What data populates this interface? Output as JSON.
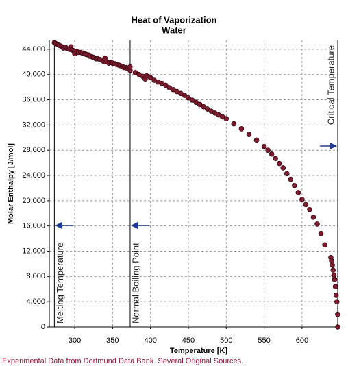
{
  "chart_data": {
    "type": "scatter",
    "title": "Heat of Vaporization",
    "subtitle": "Water",
    "x_label": "Temperature [K]",
    "y_label": "Molar Enthalpy [J/mol]",
    "footer": "Experimental Data from Dortmund Data Bank. Several Original Sources.",
    "color": "#7a1b2e",
    "grid": true,
    "xlim": [
      266.5,
      647.1
    ],
    "ylim": [
      0,
      45400
    ],
    "xticks": [
      300,
      350,
      400,
      450,
      500,
      550,
      600
    ],
    "yticks": [
      0,
      {
        "value": 4000,
        "label": "4,000"
      },
      {
        "value": 8000,
        "label": "8,000"
      },
      {
        "value": 12000,
        "label": "12,000"
      },
      {
        "value": 16000,
        "label": "16,000"
      },
      {
        "value": 20000,
        "label": "20,000"
      },
      {
        "value": 24000,
        "label": "24,000"
      },
      {
        "value": 28000,
        "label": "28,000"
      },
      {
        "value": 32000,
        "label": "32,000"
      },
      {
        "value": 36000,
        "label": "36,000"
      },
      {
        "value": 40000,
        "label": "40,000"
      },
      {
        "value": 44000,
        "label": "44,000"
      }
    ],
    "reference_lines": [
      {
        "value": 273.15,
        "label": "Melting Temperature"
      },
      {
        "value": 373.15,
        "label": "Normal Boiling Point"
      },
      {
        "value": 647.1,
        "label": "Critical Temperature"
      }
    ],
    "x": [
      273.15,
      275,
      278,
      280,
      283,
      285,
      288,
      290,
      293,
      295,
      296,
      298,
      300,
      300,
      303,
      305,
      308,
      310,
      313,
      315,
      318,
      320,
      323,
      325,
      328,
      330,
      333,
      335,
      338,
      340,
      340,
      343,
      345,
      348,
      350,
      353,
      355,
      358,
      360,
      363,
      365,
      368,
      370,
      373.15,
      373,
      380,
      385,
      390,
      393,
      395,
      400,
      405,
      410,
      415,
      420,
      425,
      430,
      435,
      440,
      445,
      450,
      455,
      460,
      465,
      470,
      475,
      480,
      485,
      490,
      495,
      500,
      510,
      520,
      530,
      540,
      550,
      555,
      560,
      565,
      570,
      575,
      580,
      585,
      590,
      595,
      600,
      605,
      610,
      615,
      620,
      625,
      630,
      638,
      639,
      640,
      641,
      642,
      643,
      644,
      645,
      646,
      647,
      647.1
    ],
    "values": [
      45050,
      44900,
      44700,
      44600,
      44400,
      44200,
      44300,
      44100,
      44000,
      44400,
      43900,
      43800,
      43700,
      43300,
      43600,
      43500,
      43500,
      43400,
      43300,
      43200,
      43100,
      42900,
      42800,
      42700,
      42500,
      42500,
      42400,
      42300,
      42100,
      42000,
      42600,
      42000,
      41800,
      41900,
      41800,
      41700,
      41600,
      41500,
      41400,
      41300,
      41100,
      41100,
      40900,
      40660,
      41200,
      40300,
      40000,
      39700,
      39300,
      39800,
      39500,
      39100,
      38800,
      38600,
      38300,
      37900,
      37600,
      37300,
      37000,
      36700,
      36300,
      35950,
      35600,
      35250,
      34900,
      34550,
      34200,
      33900,
      33600,
      33300,
      33000,
      32200,
      31400,
      30500,
      29600,
      28600,
      28000,
      27400,
      26700,
      25900,
      25200,
      24300,
      23400,
      22400,
      21300,
      20200,
      19400,
      18600,
      17400,
      16300,
      14800,
      13000,
      11000,
      10500,
      9800,
      9000,
      8200,
      7500,
      6400,
      5000,
      4000,
      2000,
      0
    ]
  }
}
